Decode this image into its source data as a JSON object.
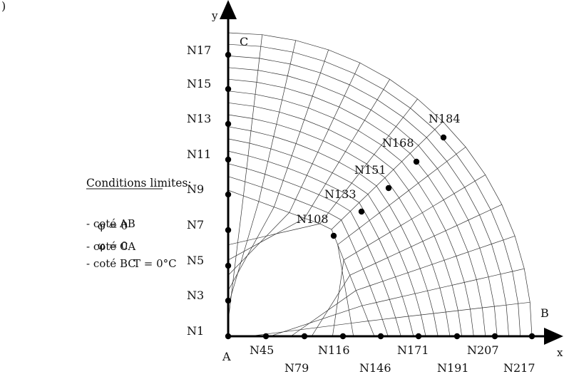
{
  "figure": {
    "corner_mark": ")",
    "axis_y_label": "y",
    "axis_x_label": "x",
    "point_a": "A",
    "point_b": "B",
    "point_c": "C"
  },
  "conditions": {
    "title": "Conditions limites:",
    "rows": [
      {
        "side": "- coté AB",
        "condition": "φ = 0"
      },
      {
        "side": "- coté CA",
        "condition": "φ = 0"
      },
      {
        "side": "- coté BC",
        "condition": "T = 0°C"
      }
    ]
  },
  "y_axis_nodes": [
    "N1",
    "N3",
    "N5",
    "N7",
    "N9",
    "N11",
    "N13",
    "N15",
    "N17"
  ],
  "x_axis_nodes_upper": [
    "N45",
    "N116",
    "N171",
    "N207"
  ],
  "x_axis_nodes_lower": [
    "N79",
    "N146",
    "N191",
    "N217"
  ],
  "diagonal_nodes": [
    "N108",
    "N133",
    "N151",
    "N168",
    "N184"
  ]
}
